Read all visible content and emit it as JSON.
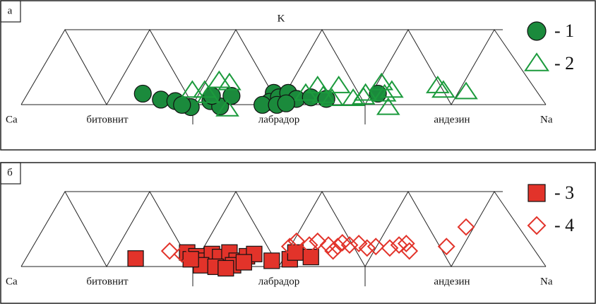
{
  "chart_data": [
    {
      "type": "scatter",
      "panel_label": "а",
      "apex_label": "K",
      "left_label": "Ca",
      "right_label": "Na",
      "zones": [
        "битовнит",
        "лабрадор",
        "андезин"
      ],
      "xlim": [
        0,
        100
      ],
      "ylim": [
        0,
        11.5
      ],
      "series": [
        {
          "name": "- 1",
          "color": "#1b8a3c",
          "marker": "circle",
          "x": [
            23.6,
            27.1,
            29.9,
            32.9,
            31.2,
            36.7,
            38.6,
            40.8,
            37.0,
            49.0,
            48.2,
            50.0,
            51.8,
            53.4,
            56.2,
            59.2,
            46.8,
            49.6,
            51.4,
            69.2
          ],
          "values": [
            2.6,
            1.8,
            1.6,
            0.8,
            1.1,
            1.6,
            0.9,
            2.3,
            2.3,
            2.7,
            1.5,
            2.1,
            2.7,
            1.9,
            2.1,
            1.9,
            1.1,
            1.1,
            1.3,
            2.6
          ]
        },
        {
          "name": "- 2",
          "color": "#1b9a3c",
          "marker": "triangle",
          "x": [
            33.2,
            35.6,
            38.4,
            40.4,
            40.0,
            36.3,
            55.2,
            57.5,
            58.6,
            61.6,
            64.4,
            66.4,
            69.9,
            70.5,
            71.2,
            71.9,
            80.8,
            81.9,
            86.3,
            66.8,
            60.3
          ],
          "values": [
            3.0,
            3.0,
            4.3,
            4.0,
            0.5,
            2.3,
            2.6,
            3.6,
            2.3,
            3.6,
            1.9,
            2.1,
            4.0,
            2.5,
            0.7,
            3.0,
            3.6,
            3.0,
            2.8,
            2.6,
            1.9
          ]
        }
      ]
    },
    {
      "type": "scatter",
      "panel_label": "б",
      "left_label": "Ca",
      "right_label": "Na",
      "zones": [
        "битовнит",
        "лабрадор",
        "андезин"
      ],
      "xlim": [
        0,
        100
      ],
      "ylim": [
        0,
        11.5
      ],
      "series": [
        {
          "name": "- 3",
          "color": "#e2332a",
          "marker": "square",
          "x": [
            22.2,
            32.2,
            34.0,
            35.9,
            37.0,
            38.6,
            40.4,
            41.8,
            43.8,
            45.2,
            34.9,
            37.7,
            41.1,
            48.6,
            52.1,
            53.2,
            56.2,
            32.9,
            39.7,
            43.2
          ],
          "values": [
            2.2,
            3.0,
            2.5,
            1.9,
            2.8,
            2.4,
            3.0,
            1.9,
            2.5,
            2.8,
            1.3,
            1.1,
            1.3,
            1.9,
            2.1,
            3.0,
            2.4,
            2.1,
            0.9,
            1.7
          ]
        },
        {
          "name": "- 4",
          "color": "#e2332a",
          "marker": "diamond",
          "x": [
            28.8,
            31.2,
            53.4,
            55.9,
            57.5,
            59.6,
            61.4,
            62.3,
            63.7,
            65.5,
            67.1,
            68.8,
            71.5,
            73.3,
            74.7,
            75.3,
            82.5,
            86.3,
            52.1,
            60.5
          ],
          "values": [
            3.2,
            2.8,
            4.5,
            4.0,
            4.5,
            4.0,
            3.8,
            4.3,
            4.0,
            4.2,
            3.6,
            3.8,
            3.6,
            4.0,
            4.2,
            3.2,
            3.8,
            6.4,
            3.8,
            3.2
          ]
        }
      ]
    }
  ]
}
